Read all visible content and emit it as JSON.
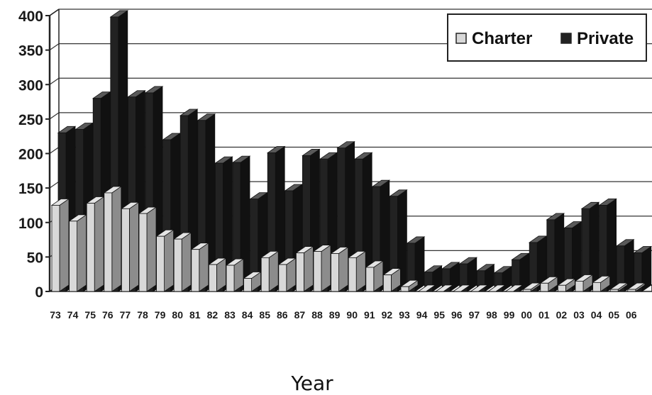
{
  "chart_data": {
    "type": "bar",
    "style": "3d-grouped",
    "categories": [
      "73",
      "74",
      "75",
      "76",
      "77",
      "78",
      "79",
      "80",
      "81",
      "82",
      "83",
      "84",
      "85",
      "86",
      "87",
      "88",
      "89",
      "90",
      "91",
      "92",
      "93",
      "94",
      "95",
      "96",
      "97",
      "98",
      "99",
      "00",
      "01",
      "02",
      "03",
      "04",
      "05",
      "06"
    ],
    "series": [
      {
        "name": "Charter",
        "color": "#d8d8d8",
        "values": [
          125,
          102,
          128,
          143,
          120,
          113,
          80,
          76,
          61,
          39,
          38,
          19,
          49,
          39,
          56,
          58,
          55,
          49,
          35,
          24,
          7,
          0,
          0,
          0,
          0,
          0,
          0,
          3,
          12,
          9,
          15,
          13,
          3,
          3
        ]
      },
      {
        "name": "Private",
        "color": "#222222",
        "values": [
          230,
          235,
          280,
          398,
          282,
          288,
          220,
          255,
          248,
          186,
          187,
          134,
          201,
          146,
          197,
          192,
          208,
          192,
          152,
          138,
          70,
          28,
          33,
          40,
          30,
          27,
          46,
          71,
          104,
          92,
          120,
          125,
          66,
          56
        ]
      }
    ],
    "ylim": [
      0,
      400
    ],
    "yticks": [
      0,
      50,
      100,
      150,
      200,
      250,
      300,
      350,
      400
    ],
    "xlabel": "Year",
    "ylabel": "",
    "grid": true,
    "legend": "top-right"
  }
}
